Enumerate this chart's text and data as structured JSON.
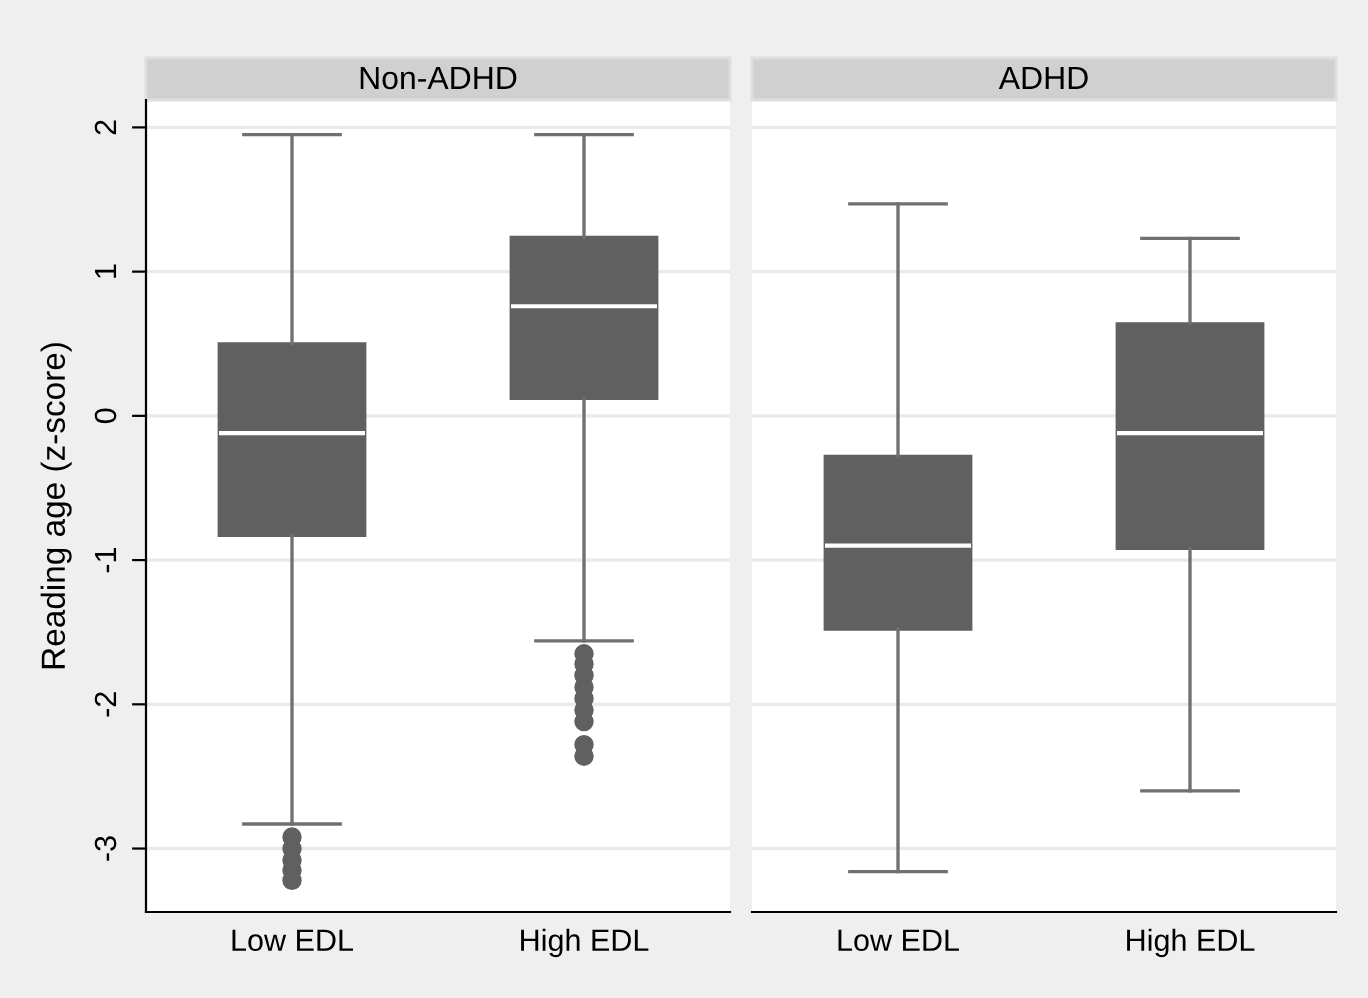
{
  "chart_data": [
    {
      "type": "box",
      "title": "Non-ADHD",
      "ylabel": "Reading age (z-score)",
      "categories": [
        "Low EDL",
        "High EDL"
      ],
      "color": "#606060",
      "ylim": [
        -3.44,
        2.19
      ],
      "yticks": [
        -3,
        -2,
        -1,
        0,
        1,
        2
      ],
      "grid": "y",
      "boxes": [
        {
          "low": -2.83,
          "q1": -0.83,
          "median": -0.12,
          "q3": 0.5,
          "high": 1.95,
          "outliers": [
            -2.92,
            -3.0,
            -3.08,
            -3.15,
            -3.22
          ]
        },
        {
          "low": -1.56,
          "q1": 0.12,
          "median": 0.76,
          "q3": 1.24,
          "high": 1.95,
          "outliers": [
            -1.65,
            -1.72,
            -1.8,
            -1.88,
            -1.96,
            -2.04,
            -2.12,
            -2.28,
            -2.36
          ]
        }
      ]
    },
    {
      "type": "box",
      "title": "ADHD",
      "categories": [
        "Low EDL",
        "High EDL"
      ],
      "color": "#606060",
      "ylim": [
        -3.44,
        2.19
      ],
      "yticks": [
        -3,
        -2,
        -1,
        0,
        1,
        2
      ],
      "grid": "y",
      "tick_labels": "x",
      "boxes": [
        {
          "low": -3.16,
          "q1": -1.48,
          "median": -0.9,
          "q3": -0.28,
          "high": 1.47
        },
        {
          "low": -2.6,
          "q1": -0.92,
          "median": -0.12,
          "q3": 0.64,
          "high": 1.23
        }
      ]
    }
  ]
}
